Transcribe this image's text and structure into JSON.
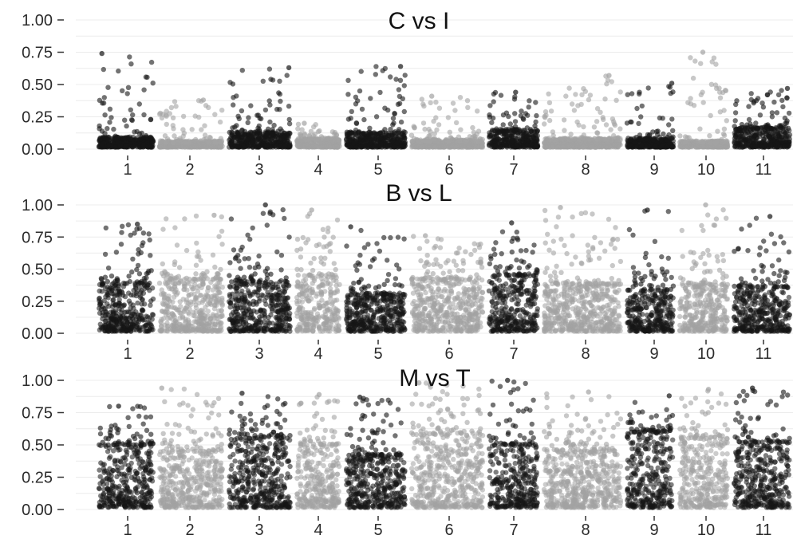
{
  "chart_data": [
    {
      "type": "scatter",
      "title": "C vs I",
      "ylim": [
        0,
        1
      ],
      "yticks": [
        "0.00",
        "0.25",
        "0.50",
        "0.75",
        "1.00"
      ],
      "x": [
        "1",
        "2",
        "3",
        "4",
        "5",
        "6",
        "7",
        "8",
        "9",
        "10",
        "11"
      ],
      "grid": true,
      "colors": [
        "#161616",
        "#a3a3a3"
      ],
      "series": [
        {
          "x": "1",
          "base": 0.08,
          "peak": 0.74
        },
        {
          "x": "2",
          "base": 0.05,
          "peak": 0.38
        },
        {
          "x": "3",
          "base": 0.12,
          "peak": 0.63
        },
        {
          "x": "4",
          "base": 0.07,
          "peak": 0.2
        },
        {
          "x": "5",
          "base": 0.12,
          "peak": 0.64
        },
        {
          "x": "6",
          "base": 0.06,
          "peak": 0.41
        },
        {
          "x": "7",
          "base": 0.14,
          "peak": 0.44
        },
        {
          "x": "8",
          "base": 0.07,
          "peak": 0.57
        },
        {
          "x": "9",
          "base": 0.07,
          "peak": 0.51
        },
        {
          "x": "10",
          "base": 0.05,
          "peak": 0.75
        },
        {
          "x": "11",
          "base": 0.16,
          "peak": 0.47
        }
      ]
    },
    {
      "type": "scatter",
      "title": "B vs L",
      "ylim": [
        0,
        1
      ],
      "yticks": [
        "0.00",
        "0.25",
        "0.50",
        "0.75",
        "1.00"
      ],
      "x": [
        "1",
        "2",
        "3",
        "4",
        "5",
        "6",
        "7",
        "8",
        "9",
        "10",
        "11"
      ],
      "grid": true,
      "colors": [
        "#161616",
        "#a3a3a3"
      ],
      "series": [
        {
          "x": "1",
          "base": 0.38,
          "peak": 0.85
        },
        {
          "x": "2",
          "base": 0.42,
          "peak": 0.92
        },
        {
          "x": "3",
          "base": 0.4,
          "peak": 1.0
        },
        {
          "x": "4",
          "base": 0.45,
          "peak": 0.96
        },
        {
          "x": "5",
          "base": 0.3,
          "peak": 0.83
        },
        {
          "x": "6",
          "base": 0.42,
          "peak": 0.76
        },
        {
          "x": "7",
          "base": 0.45,
          "peak": 0.86
        },
        {
          "x": "8",
          "base": 0.38,
          "peak": 0.98
        },
        {
          "x": "9",
          "base": 0.33,
          "peak": 0.96
        },
        {
          "x": "10",
          "base": 0.38,
          "peak": 1.0
        },
        {
          "x": "11",
          "base": 0.36,
          "peak": 0.91
        }
      ]
    },
    {
      "type": "scatter",
      "title": "M vs T",
      "ylim": [
        0,
        1
      ],
      "yticks": [
        "0.00",
        "0.25",
        "0.50",
        "0.75",
        "1.00"
      ],
      "x": [
        "1",
        "2",
        "3",
        "4",
        "5",
        "6",
        "7",
        "8",
        "9",
        "10",
        "11"
      ],
      "grid": true,
      "colors": [
        "#161616",
        "#a3a3a3"
      ],
      "series": [
        {
          "x": "1",
          "base": 0.5,
          "peak": 0.8
        },
        {
          "x": "2",
          "base": 0.45,
          "peak": 0.94
        },
        {
          "x": "3",
          "base": 0.55,
          "peak": 0.9
        },
        {
          "x": "4",
          "base": 0.5,
          "peak": 0.89
        },
        {
          "x": "5",
          "base": 0.42,
          "peak": 0.87
        },
        {
          "x": "6",
          "base": 0.58,
          "peak": 0.98
        },
        {
          "x": "7",
          "base": 0.5,
          "peak": 1.0
        },
        {
          "x": "8",
          "base": 0.45,
          "peak": 0.91
        },
        {
          "x": "9",
          "base": 0.6,
          "peak": 0.88
        },
        {
          "x": "10",
          "base": 0.55,
          "peak": 0.93
        },
        {
          "x": "11",
          "base": 0.52,
          "peak": 0.94
        }
      ]
    }
  ]
}
